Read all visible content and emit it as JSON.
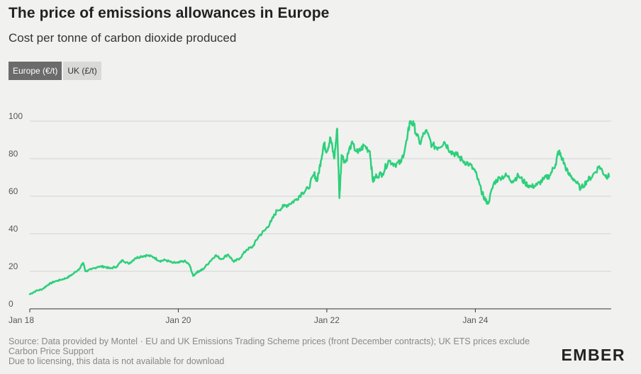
{
  "title": "The price of emissions allowances in Europe",
  "subtitle": "Cost per tonne of carbon dioxide produced",
  "toggle": {
    "europe_label": "Europe (€/t)",
    "uk_label": "UK (£/t)"
  },
  "source": {
    "line1": "Source: Data provided by Montel · EU and UK Emissions Trading Scheme prices (front December contracts); UK ETS prices exclude Carbon Price Support",
    "line2": "Due to licensing, this data is not available for download"
  },
  "logo": "EMBER",
  "colors": {
    "line": "#2dd07a",
    "grid": "#d4d4d4",
    "axis": "#333333"
  },
  "chart_data": {
    "type": "line",
    "title": "The price of emissions allowances in Europe",
    "ylabel": "",
    "xlabel": "",
    "ylim": [
      0,
      100
    ],
    "xlim": [
      2018.0,
      2025.83
    ],
    "yticks": [
      0,
      20,
      40,
      60,
      80,
      100
    ],
    "xticks": [
      {
        "x": 2018,
        "label": "Jan 18"
      },
      {
        "x": 2020,
        "label": "Jan 20"
      },
      {
        "x": 2022,
        "label": "Jan 22"
      },
      {
        "x": 2024,
        "label": "Jan 24"
      }
    ],
    "series": [
      {
        "name": "Europe (€/t)",
        "x": [
          2018.0,
          2018.08,
          2018.17,
          2018.25,
          2018.33,
          2018.42,
          2018.5,
          2018.58,
          2018.67,
          2018.72,
          2018.75,
          2018.83,
          2018.92,
          2019.0,
          2019.08,
          2019.17,
          2019.25,
          2019.33,
          2019.42,
          2019.5,
          2019.58,
          2019.67,
          2019.75,
          2019.83,
          2019.92,
          2020.0,
          2020.08,
          2020.15,
          2020.2,
          2020.25,
          2020.3,
          2020.33,
          2020.42,
          2020.5,
          2020.58,
          2020.67,
          2020.75,
          2020.83,
          2020.92,
          2021.0,
          2021.08,
          2021.17,
          2021.25,
          2021.33,
          2021.42,
          2021.5,
          2021.58,
          2021.67,
          2021.75,
          2021.83,
          2021.87,
          2021.92,
          2021.96,
          2022.0,
          2022.05,
          2022.1,
          2022.14,
          2022.17,
          2022.2,
          2022.25,
          2022.33,
          2022.42,
          2022.5,
          2022.58,
          2022.62,
          2022.67,
          2022.75,
          2022.83,
          2022.92,
          2023.0,
          2023.08,
          2023.12,
          2023.17,
          2023.25,
          2023.33,
          2023.42,
          2023.5,
          2023.58,
          2023.67,
          2023.75,
          2023.83,
          2023.92,
          2024.0,
          2024.08,
          2024.12,
          2024.17,
          2024.25,
          2024.33,
          2024.42,
          2024.5,
          2024.58,
          2024.67,
          2024.75,
          2024.83,
          2024.92,
          2025.0,
          2025.08,
          2025.12,
          2025.17,
          2025.25,
          2025.33,
          2025.42,
          2025.5,
          2025.58,
          2025.67,
          2025.75,
          2025.8
        ],
        "values": [
          7.8,
          9.5,
          10.5,
          13.0,
          14.5,
          15.5,
          16.5,
          18.5,
          21.5,
          24.5,
          20.0,
          21.0,
          22.5,
          22.5,
          21.5,
          22.5,
          26.0,
          24.0,
          27.0,
          28.0,
          28.5,
          27.5,
          25.5,
          26.0,
          24.5,
          24.5,
          25.5,
          23.5,
          17.5,
          19.5,
          20.5,
          21.0,
          25.0,
          28.5,
          26.5,
          29.0,
          25.0,
          27.0,
          31.5,
          33.0,
          38.5,
          42.0,
          46.5,
          52.5,
          54.5,
          56.0,
          58.0,
          62.0,
          64.0,
          72.0,
          68.0,
          79.0,
          88.0,
          84.0,
          91.0,
          80.0,
          96.0,
          59.0,
          82.0,
          78.0,
          88.0,
          83.0,
          87.0,
          84.0,
          68.0,
          71.0,
          72.0,
          79.0,
          77.0,
          78.0,
          90.0,
          100.0,
          98.0,
          88.0,
          95.0,
          87.0,
          86.0,
          89.0,
          84.0,
          82.0,
          79.0,
          77.0,
          73.0,
          63.0,
          59.0,
          56.0,
          67.0,
          70.0,
          71.0,
          68.0,
          71.0,
          67.0,
          65.0,
          66.0,
          69.0,
          71.0,
          77.0,
          84.0,
          80.0,
          72.0,
          69.0,
          64.0,
          68.0,
          71.0,
          76.0,
          71.0,
          70.5
        ]
      }
    ]
  }
}
